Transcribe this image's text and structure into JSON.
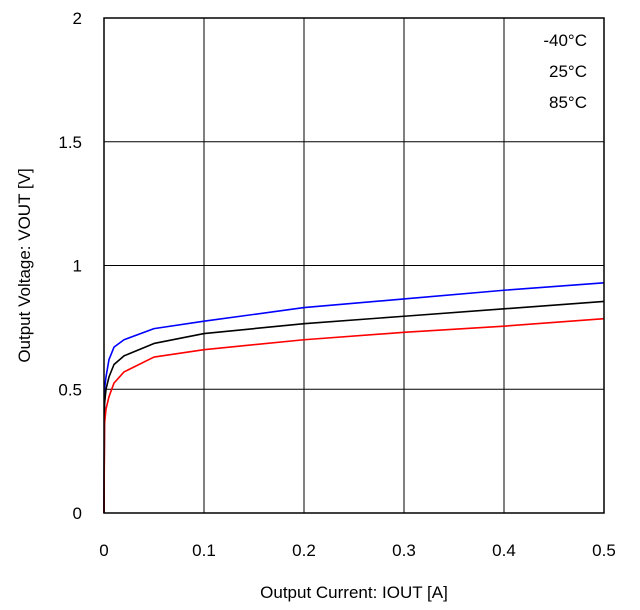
{
  "chart_data": {
    "type": "line",
    "title": "",
    "xlabel": "Output Current: IOUT [A]",
    "ylabel": "Output Voltage: VOUT [V]",
    "xlim": [
      0,
      0.5
    ],
    "ylim": [
      0,
      2
    ],
    "xticks": [
      "0",
      "0.1",
      "0.2",
      "0.3",
      "0.4",
      "0.5"
    ],
    "yticks": [
      "0",
      "0.5",
      "1",
      "1.5",
      "2"
    ],
    "grid": true,
    "legend": {
      "position": "top-right",
      "entries": [
        "-40°C",
        "25°C",
        "85°C"
      ]
    },
    "series": [
      {
        "name": "-40°C",
        "color": "#0000ff",
        "points": [
          [
            0,
            0
          ],
          [
            0.0005,
            0.5
          ],
          [
            0.002,
            0.55
          ],
          [
            0.005,
            0.62
          ],
          [
            0.01,
            0.67
          ],
          [
            0.02,
            0.7
          ],
          [
            0.05,
            0.745
          ],
          [
            0.1,
            0.775
          ],
          [
            0.2,
            0.83
          ],
          [
            0.3,
            0.865
          ],
          [
            0.4,
            0.9
          ],
          [
            0.5,
            0.93
          ]
        ]
      },
      {
        "name": "25°C",
        "color": "#000000",
        "points": [
          [
            0,
            0
          ],
          [
            0.0005,
            0.44
          ],
          [
            0.002,
            0.5
          ],
          [
            0.005,
            0.55
          ],
          [
            0.01,
            0.6
          ],
          [
            0.02,
            0.635
          ],
          [
            0.05,
            0.685
          ],
          [
            0.1,
            0.725
          ],
          [
            0.2,
            0.765
          ],
          [
            0.3,
            0.795
          ],
          [
            0.4,
            0.825
          ],
          [
            0.5,
            0.855
          ]
        ]
      },
      {
        "name": "85°C",
        "color": "#ff0000",
        "points": [
          [
            0,
            0
          ],
          [
            0.0005,
            0.36
          ],
          [
            0.002,
            0.42
          ],
          [
            0.005,
            0.47
          ],
          [
            0.01,
            0.525
          ],
          [
            0.02,
            0.57
          ],
          [
            0.05,
            0.63
          ],
          [
            0.1,
            0.66
          ],
          [
            0.2,
            0.7
          ],
          [
            0.3,
            0.73
          ],
          [
            0.4,
            0.755
          ],
          [
            0.5,
            0.785
          ]
        ]
      }
    ]
  }
}
